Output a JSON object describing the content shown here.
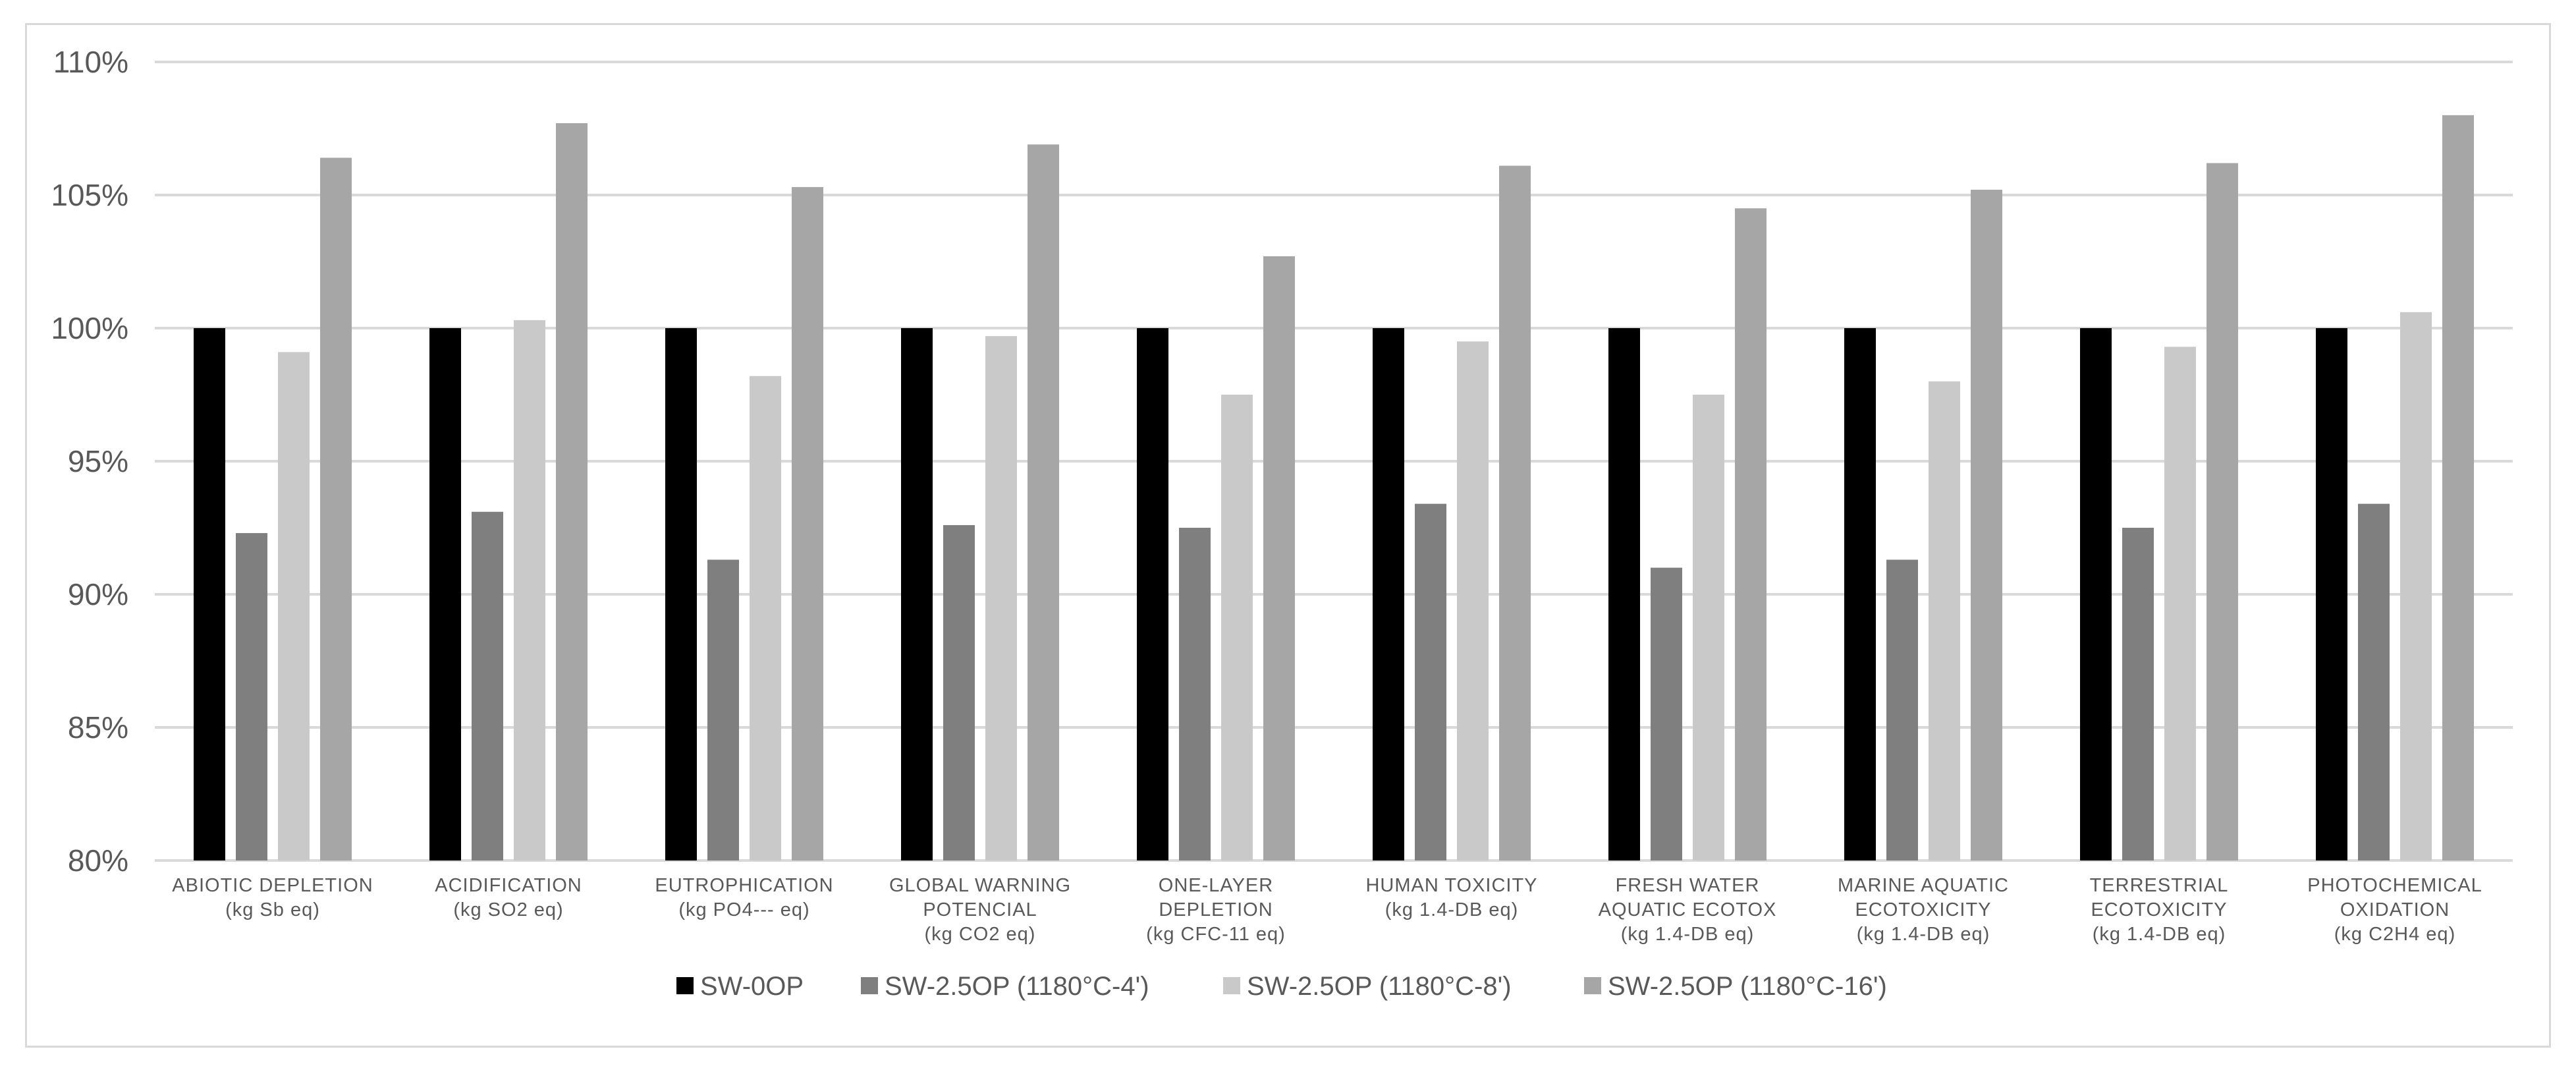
{
  "chart_data": {
    "type": "bar",
    "title": "",
    "xlabel": "",
    "ylabel": "",
    "ylim": [
      80,
      110
    ],
    "y_ticks": [
      "80%",
      "85%",
      "90%",
      "95%",
      "100%",
      "105%",
      "110%"
    ],
    "y_tick_values": [
      80,
      85,
      90,
      95,
      100,
      105,
      110
    ],
    "grid": true,
    "legend_position": "bottom",
    "categories": [
      [
        "ABIOTIC DEPLETION",
        "(kg Sb eq)"
      ],
      [
        "ACIDIFICATION",
        "(kg SO2 eq)"
      ],
      [
        "EUTROPHICATION",
        "(kg PO4--- eq)"
      ],
      [
        "GLOBAL WARNING",
        "POTENCIAL",
        "(kg CO2 eq)"
      ],
      [
        "ONE-LAYER",
        "DEPLETION",
        "(kg CFC-11 eq)"
      ],
      [
        "HUMAN TOXICITY",
        "(kg 1.4-DB eq)"
      ],
      [
        "FRESH WATER",
        "AQUATIC ECOTOX",
        "(kg 1.4-DB eq)"
      ],
      [
        "MARINE AQUATIC",
        "ECOTOXICITY",
        "(kg 1.4-DB eq)"
      ],
      [
        "TERRESTRIAL",
        "ECOTOXICITY",
        "(kg 1.4-DB eq)"
      ],
      [
        "PHOTOCHEMICAL",
        "OXIDATION",
        "(kg C2H4 eq)"
      ]
    ],
    "series": [
      {
        "name": "SW-0OP",
        "color": "#000000",
        "values": [
          100,
          100,
          100,
          100,
          100,
          100,
          100,
          100,
          100,
          100
        ]
      },
      {
        "name": "SW-2.5OP (1180°C-4')",
        "color": "#7f7f7f",
        "values": [
          92.3,
          93.1,
          91.3,
          92.6,
          92.5,
          93.4,
          91.0,
          91.3,
          92.5,
          93.4
        ]
      },
      {
        "name": "SW-2.5OP (1180°C-8')",
        "color": "#c9c9c9",
        "values": [
          99.1,
          100.3,
          98.2,
          99.7,
          97.5,
          99.5,
          97.5,
          98.0,
          99.3,
          100.6
        ]
      },
      {
        "name": "SW-2.5OP (1180°C-16')",
        "color": "#a6a6a6",
        "values": [
          106.4,
          107.7,
          105.3,
          106.9,
          102.7,
          106.1,
          104.5,
          105.2,
          106.2,
          108.0
        ]
      }
    ]
  }
}
